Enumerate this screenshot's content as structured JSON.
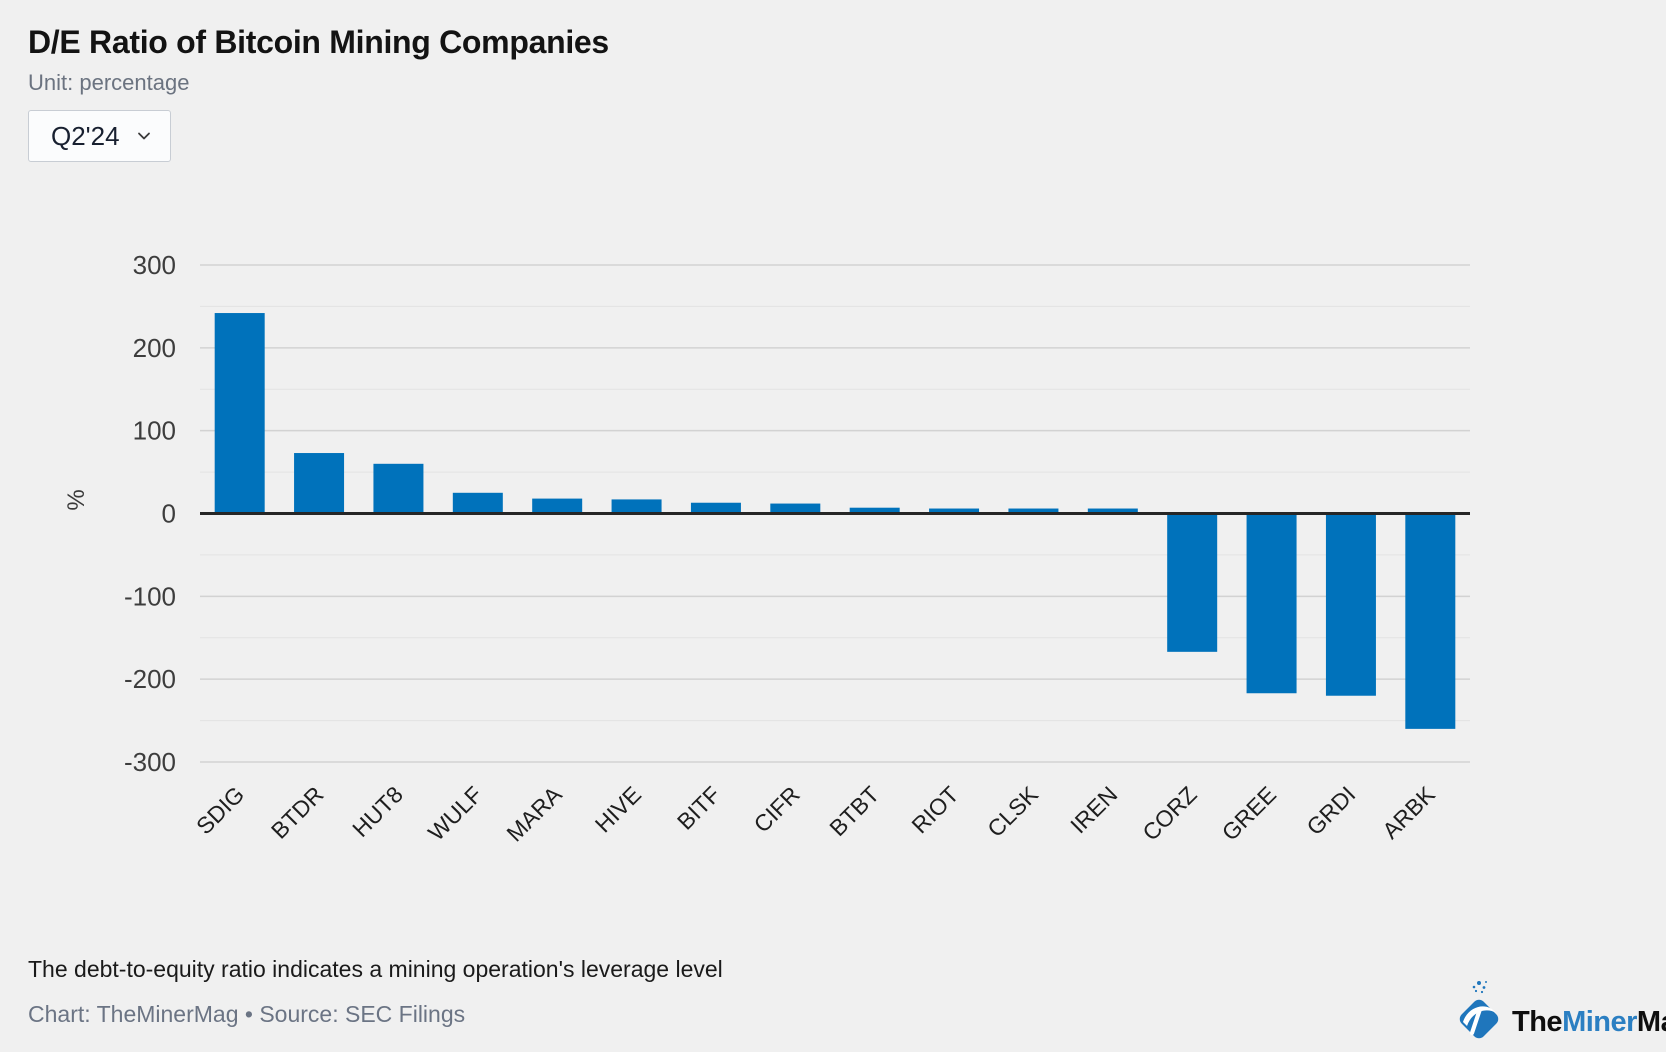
{
  "header": {
    "title": "D/E Ratio of Bitcoin Mining Companies",
    "subtitle": "Unit: percentage"
  },
  "controls": {
    "period_value": "Q2'24",
    "chevron_icon": "chevron-down-icon"
  },
  "chart_data": {
    "type": "bar",
    "title": "D/E Ratio of Bitcoin Mining Companies",
    "unit": "percentage",
    "ylabel": "%",
    "ylim": [
      -300,
      300
    ],
    "ytick_step": 100,
    "minor_tick_step": 50,
    "yticks": [
      300,
      200,
      100,
      0,
      -100,
      -200,
      -300
    ],
    "grid": true,
    "legend": "none",
    "categories": [
      "SDIG",
      "BTDR",
      "HUT8",
      "WULF",
      "MARA",
      "HIVE",
      "BITF",
      "CIFR",
      "BTBT",
      "RIOT",
      "CLSK",
      "IREN",
      "CORZ",
      "GREE",
      "GRDI",
      "ARBK"
    ],
    "values": [
      242,
      73,
      60,
      25,
      18,
      17,
      13,
      12,
      7,
      6,
      6,
      6,
      -167,
      -217,
      -220,
      -260
    ],
    "bar_color": "#0072bb",
    "grid_major_color": "#d2d2d2",
    "grid_minor_color": "#e3e3e3",
    "zero_line_color": "#262626",
    "tick_label_color": "#3d3d3d",
    "category_label_color": "#1e1e1e"
  },
  "footer": {
    "note": "The debt-to-equity ratio indicates a mining operation's leverage level",
    "credit": "Chart: TheMinerMag • Source: SEC Filings"
  },
  "logo": {
    "icon": "pickaxe-diamond-icon",
    "icon_color": "#1f76bc",
    "parts": [
      {
        "text": "The",
        "color": "#0e0e0e"
      },
      {
        "text": "Miner",
        "color": "#2b7fc2"
      },
      {
        "text": "Mag",
        "color": "#0e0e0e"
      }
    ]
  }
}
